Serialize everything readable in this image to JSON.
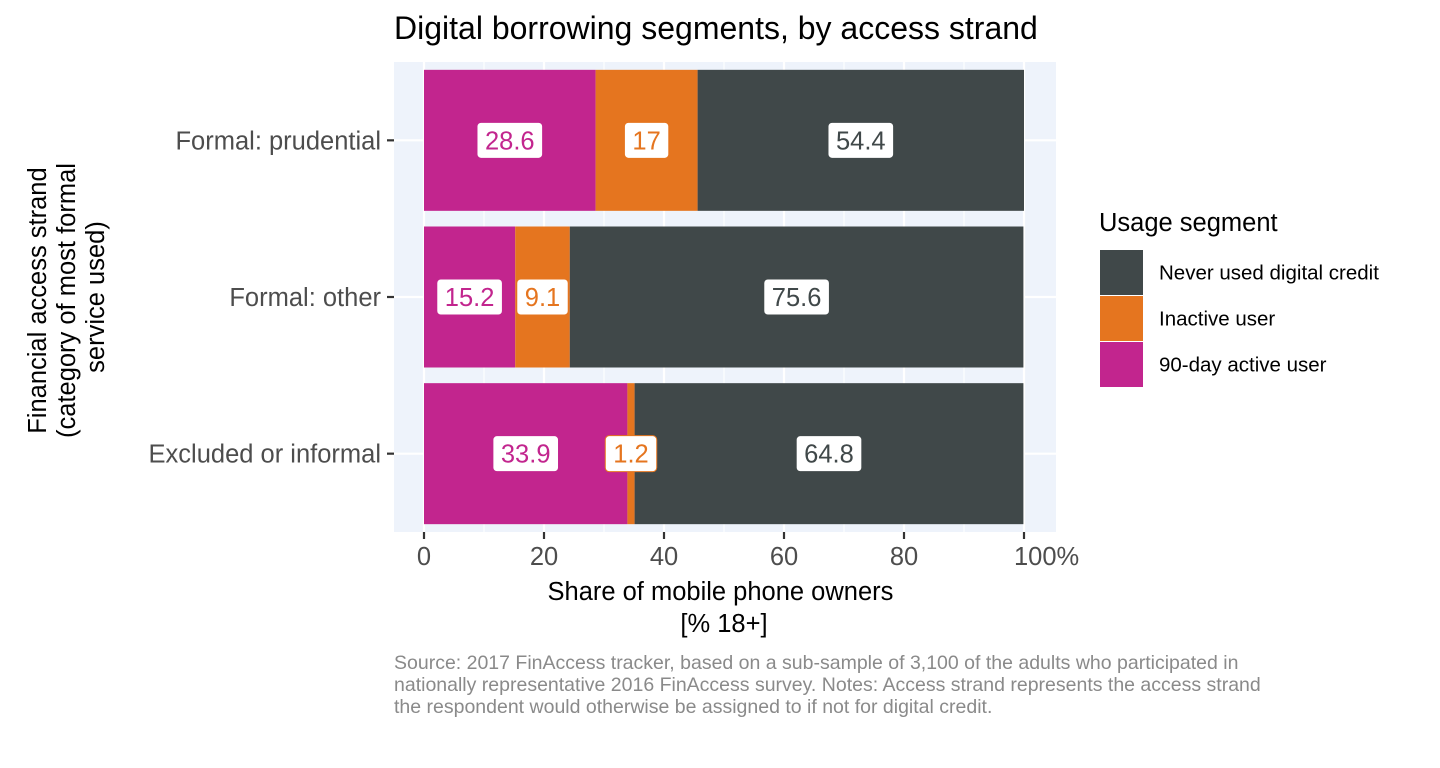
{
  "chart_data": {
    "type": "bar",
    "orientation": "horizontal",
    "stacked": true,
    "title": "Digital borrowing segments, by access strand",
    "xlabel_lines": [
      "Share of mobile phone owners",
      "[% 18+]"
    ],
    "ylabel_lines": [
      "Financial access strand",
      "(category of most formal",
      "service used)"
    ],
    "categories": [
      "Formal: prudential",
      "Formal: other",
      "Excluded or informal"
    ],
    "series": [
      {
        "name": "90-day active user",
        "color": "#C2258E",
        "values": [
          28.6,
          15.2,
          33.9
        ]
      },
      {
        "name": "Inactive user",
        "color": "#E5751F",
        "values": [
          17,
          9.1,
          1.2
        ]
      },
      {
        "name": "Never used digital credit",
        "color": "#404849",
        "values": [
          54.4,
          75.6,
          64.8
        ]
      }
    ],
    "xlim": [
      0,
      100
    ],
    "x_ticks": [
      0,
      20,
      40,
      60,
      80,
      100
    ],
    "x_tick_labels": [
      "0",
      "20",
      "40",
      "60",
      "80",
      "100%"
    ],
    "grid": true,
    "panel_background": "#EEF3FB",
    "legend": {
      "title": "Usage segment",
      "position": "right",
      "order": [
        "Never used digital credit",
        "Inactive user",
        "90-day active user"
      ]
    }
  },
  "caption": "Source: 2017 FinAccess tracker, based on a sub-sample of 3,100 of the adults who participated in nationally representative 2016 FinAccess survey. Notes: Access strand represents the access strand the respondent would otherwise be assigned to if not for digital credit."
}
